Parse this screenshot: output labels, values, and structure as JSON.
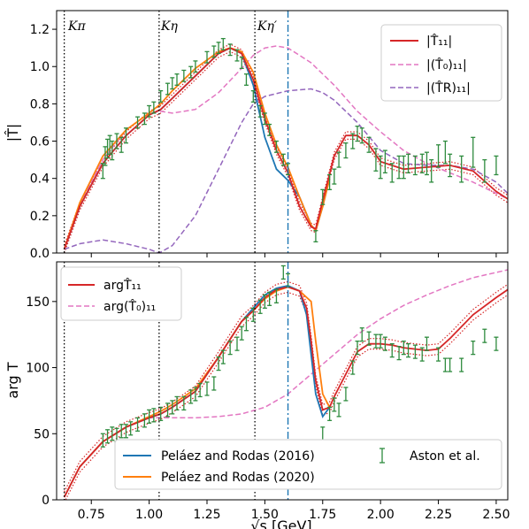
{
  "chart_data": [
    {
      "type": "line",
      "ylabel": "|T̂|",
      "xlim": [
        0.6,
        2.55
      ],
      "ylim": [
        0.0,
        1.3
      ],
      "x_ticks": [
        0.75,
        1.0,
        1.25,
        1.5,
        1.75,
        2.0,
        2.25,
        2.5
      ],
      "y_ticks": [
        0.0,
        0.2,
        0.4,
        0.6,
        0.8,
        1.0,
        1.2
      ],
      "y_tick_labels": [
        "0.0",
        "0.2",
        "0.4",
        "0.6",
        "0.8",
        "1.0",
        "1.2"
      ],
      "legend_position": "top-right",
      "legend": [
        "|T̂₁₁|",
        "|(T̂₀)₁₁|",
        "|(T̂R)₁₁|"
      ],
      "thresholds": [
        {
          "x": 0.633,
          "label": "Kπ"
        },
        {
          "x": 1.043,
          "label": "Kη"
        },
        {
          "x": 1.457,
          "label": "Kη′"
        }
      ],
      "vline_dashdot": 1.6,
      "series": [
        {
          "name": "|T̂₁₁|",
          "color": "#d62728",
          "style": "solid",
          "band": true,
          "x": [
            0.633,
            0.7,
            0.8,
            0.9,
            1.0,
            1.05,
            1.1,
            1.2,
            1.3,
            1.35,
            1.4,
            1.45,
            1.5,
            1.55,
            1.6,
            1.65,
            1.7,
            1.72,
            1.75,
            1.8,
            1.85,
            1.9,
            1.95,
            2.0,
            2.1,
            2.2,
            2.3,
            2.4,
            2.5,
            2.55
          ],
          "y": [
            0.02,
            0.25,
            0.48,
            0.63,
            0.74,
            0.77,
            0.83,
            0.95,
            1.07,
            1.1,
            1.07,
            0.93,
            0.72,
            0.55,
            0.43,
            0.25,
            0.14,
            0.13,
            0.28,
            0.52,
            0.63,
            0.63,
            0.58,
            0.49,
            0.45,
            0.46,
            0.47,
            0.44,
            0.33,
            0.29
          ]
        },
        {
          "name": "|(T̂₀)₁₁|",
          "color": "#e377c2",
          "style": "dashed",
          "x": [
            0.633,
            0.7,
            0.8,
            0.9,
            1.0,
            1.05,
            1.1,
            1.2,
            1.3,
            1.4,
            1.45,
            1.5,
            1.55,
            1.6,
            1.7,
            1.8,
            1.9,
            2.0,
            2.1,
            2.2,
            2.3,
            2.4,
            2.5,
            2.55
          ],
          "y": [
            0.02,
            0.26,
            0.5,
            0.66,
            0.75,
            0.76,
            0.75,
            0.77,
            0.86,
            0.99,
            1.06,
            1.1,
            1.11,
            1.1,
            1.02,
            0.9,
            0.76,
            0.65,
            0.55,
            0.48,
            0.43,
            0.38,
            0.32,
            0.29
          ]
        },
        {
          "name": "|(T̂R)₁₁|",
          "color": "#9467bd",
          "style": "dashed",
          "x": [
            0.633,
            0.7,
            0.8,
            0.9,
            1.0,
            1.043,
            1.1,
            1.2,
            1.3,
            1.4,
            1.45,
            1.5,
            1.6,
            1.7,
            1.75,
            1.8,
            1.9,
            2.0,
            2.1,
            2.2,
            2.3,
            2.4,
            2.5,
            2.55
          ],
          "y": [
            0.02,
            0.05,
            0.07,
            0.05,
            0.02,
            0.0,
            0.04,
            0.2,
            0.45,
            0.7,
            0.8,
            0.84,
            0.87,
            0.88,
            0.86,
            0.82,
            0.7,
            0.55,
            0.48,
            0.47,
            0.47,
            0.45,
            0.38,
            0.32
          ]
        },
        {
          "name": "Peláez and Rodas (2016)",
          "color": "#1f77b4",
          "style": "solid",
          "x": [
            0.633,
            0.7,
            0.8,
            0.9,
            1.0,
            1.05,
            1.1,
            1.2,
            1.3,
            1.35,
            1.4,
            1.45,
            1.5,
            1.55,
            1.6,
            1.65,
            1.7,
            1.72,
            1.75,
            1.78
          ],
          "y": [
            0.02,
            0.25,
            0.48,
            0.63,
            0.74,
            0.77,
            0.83,
            0.95,
            1.07,
            1.1,
            1.07,
            0.9,
            0.62,
            0.45,
            0.39,
            0.3,
            0.15,
            0.12,
            0.25,
            0.4
          ]
        },
        {
          "name": "Peláez and Rodas (2020)",
          "color": "#ff7f0e",
          "style": "solid",
          "x": [
            0.633,
            0.7,
            0.8,
            0.9,
            1.0,
            1.05,
            1.1,
            1.2,
            1.3,
            1.35,
            1.4,
            1.45,
            1.5,
            1.55,
            1.6,
            1.65,
            1.7,
            1.72,
            1.75,
            1.78
          ],
          "y": [
            0.02,
            0.27,
            0.52,
            0.66,
            0.75,
            0.8,
            0.87,
            0.99,
            1.08,
            1.1,
            1.08,
            0.97,
            0.75,
            0.58,
            0.46,
            0.3,
            0.15,
            0.12,
            0.25,
            0.4
          ]
        }
      ],
      "points": {
        "name": "Aston et al.",
        "color": "#2e8b3e",
        "x": [
          0.8,
          0.81,
          0.82,
          0.83,
          0.84,
          0.86,
          0.88,
          0.9,
          0.95,
          0.98,
          1.0,
          1.02,
          1.05,
          1.08,
          1.1,
          1.12,
          1.15,
          1.18,
          1.2,
          1.25,
          1.28,
          1.3,
          1.32,
          1.35,
          1.38,
          1.4,
          1.42,
          1.45,
          1.48,
          1.5,
          1.52,
          1.55,
          1.58,
          1.6,
          1.72,
          1.75,
          1.78,
          1.8,
          1.82,
          1.85,
          1.88,
          1.9,
          1.92,
          1.95,
          1.98,
          2.0,
          2.02,
          2.05,
          2.08,
          2.1,
          2.12,
          2.15,
          2.18,
          2.2,
          2.22,
          2.25,
          2.28,
          2.3,
          2.35,
          2.4,
          2.45,
          2.5
        ],
        "y": [
          0.44,
          0.52,
          0.56,
          0.58,
          0.55,
          0.6,
          0.58,
          0.63,
          0.7,
          0.72,
          0.76,
          0.78,
          0.84,
          0.88,
          0.91,
          0.93,
          0.95,
          0.97,
          1.0,
          1.05,
          1.08,
          1.1,
          1.12,
          1.09,
          1.06,
          1.02,
          0.93,
          0.84,
          0.76,
          0.72,
          0.66,
          0.57,
          0.5,
          0.45,
          0.09,
          0.3,
          0.38,
          0.41,
          0.5,
          0.55,
          0.6,
          0.64,
          0.63,
          0.58,
          0.5,
          0.46,
          0.49,
          0.43,
          0.46,
          0.46,
          0.48,
          0.47,
          0.48,
          0.48,
          0.44,
          0.52,
          0.54,
          0.47,
          0.45,
          0.54,
          0.44,
          0.47
        ],
        "err": [
          0.04,
          0.05,
          0.05,
          0.05,
          0.05,
          0.04,
          0.04,
          0.04,
          0.03,
          0.03,
          0.03,
          0.03,
          0.03,
          0.03,
          0.03,
          0.03,
          0.03,
          0.03,
          0.03,
          0.03,
          0.03,
          0.03,
          0.03,
          0.03,
          0.03,
          0.03,
          0.03,
          0.03,
          0.03,
          0.03,
          0.03,
          0.03,
          0.03,
          0.03,
          0.03,
          0.04,
          0.04,
          0.04,
          0.04,
          0.04,
          0.04,
          0.04,
          0.04,
          0.04,
          0.06,
          0.06,
          0.06,
          0.05,
          0.06,
          0.06,
          0.05,
          0.05,
          0.05,
          0.06,
          0.06,
          0.06,
          0.06,
          0.06,
          0.07,
          0.08,
          0.06,
          0.05
        ]
      }
    },
    {
      "type": "line",
      "ylabel": "arg T",
      "xlabel": "√s [GeV]",
      "xlim": [
        0.6,
        2.55
      ],
      "ylim": [
        0,
        180
      ],
      "x_ticks": [
        0.75,
        1.0,
        1.25,
        1.5,
        1.75,
        2.0,
        2.25,
        2.5
      ],
      "x_tick_labels": [
        "0.75",
        "1.00",
        "1.25",
        "1.50",
        "1.75",
        "2.00",
        "2.25",
        "2.50"
      ],
      "y_ticks": [
        0,
        50,
        100,
        150
      ],
      "y_tick_labels": [
        "0",
        "50",
        "100",
        "150"
      ],
      "thresholds": [
        {
          "x": 0.633
        },
        {
          "x": 1.043
        },
        {
          "x": 1.457
        }
      ],
      "vline_dashdot": 1.6,
      "legend_upper": [
        "argT̂₁₁",
        "arg(T̂₀)₁₁"
      ],
      "legend_lower": [
        "Peláez and Rodas (2016)",
        "Peláez and Rodas (2020)",
        "Aston et al."
      ],
      "series": [
        {
          "name": "argT̂₁₁",
          "color": "#d62728",
          "style": "solid",
          "band": true,
          "x": [
            0.633,
            0.7,
            0.8,
            0.9,
            1.0,
            1.05,
            1.1,
            1.2,
            1.3,
            1.4,
            1.45,
            1.5,
            1.55,
            1.6,
            1.65,
            1.68,
            1.7,
            1.72,
            1.75,
            1.78,
            1.8,
            1.85,
            1.9,
            1.95,
            2.0,
            2.05,
            2.1,
            2.2,
            2.25,
            2.3,
            2.4,
            2.5,
            2.55
          ],
          "y": [
            2,
            25,
            44,
            55,
            62,
            65,
            70,
            82,
            108,
            135,
            143,
            153,
            159,
            161,
            158,
            145,
            120,
            90,
            68,
            70,
            78,
            95,
            112,
            118,
            118,
            117,
            115,
            113,
            114,
            122,
            140,
            153,
            159
          ]
        },
        {
          "name": "arg(T̂₀)₁₁",
          "color": "#e377c2",
          "style": "dashed",
          "x": [
            0.633,
            0.7,
            0.8,
            0.9,
            1.0,
            1.1,
            1.2,
            1.3,
            1.4,
            1.5,
            1.6,
            1.7,
            1.8,
            1.9,
            2.0,
            2.1,
            2.2,
            2.3,
            2.4,
            2.5,
            2.55
          ],
          "y": [
            2,
            25,
            44,
            55,
            62,
            62,
            62,
            63,
            65,
            70,
            80,
            95,
            110,
            125,
            137,
            147,
            155,
            162,
            168,
            172,
            174
          ]
        },
        {
          "name": "Peláez and Rodas (2016)",
          "color": "#1f77b4",
          "style": "solid",
          "x": [
            0.633,
            0.7,
            0.8,
            0.9,
            1.0,
            1.05,
            1.1,
            1.2,
            1.3,
            1.4,
            1.45,
            1.5,
            1.55,
            1.6,
            1.65,
            1.68,
            1.7,
            1.72,
            1.75,
            1.78
          ],
          "y": [
            2,
            25,
            44,
            55,
            62,
            65,
            70,
            82,
            108,
            135,
            145,
            155,
            160,
            162,
            158,
            140,
            110,
            80,
            63,
            70
          ]
        },
        {
          "name": "Peláez and Rodas (2020)",
          "color": "#ff7f0e",
          "style": "solid",
          "x": [
            0.633,
            0.7,
            0.8,
            0.9,
            1.0,
            1.05,
            1.1,
            1.2,
            1.3,
            1.4,
            1.45,
            1.5,
            1.55,
            1.6,
            1.65,
            1.7,
            1.72,
            1.75,
            1.78
          ],
          "y": [
            2,
            25,
            44,
            55,
            63,
            67,
            72,
            84,
            108,
            135,
            143,
            152,
            158,
            161,
            158,
            150,
            120,
            80,
            70
          ]
        }
      ],
      "points": {
        "name": "Aston et al.",
        "color": "#2e8b3e",
        "x": [
          0.8,
          0.82,
          0.84,
          0.86,
          0.88,
          0.9,
          0.92,
          0.95,
          0.98,
          1.0,
          1.02,
          1.05,
          1.08,
          1.1,
          1.12,
          1.15,
          1.18,
          1.2,
          1.22,
          1.25,
          1.28,
          1.3,
          1.32,
          1.35,
          1.38,
          1.4,
          1.42,
          1.45,
          1.48,
          1.5,
          1.52,
          1.55,
          1.58,
          1.6,
          1.75,
          1.78,
          1.8,
          1.82,
          1.85,
          1.88,
          1.9,
          1.92,
          1.95,
          1.98,
          2.0,
          2.02,
          2.05,
          2.08,
          2.1,
          2.12,
          2.15,
          2.18,
          2.2,
          2.25,
          2.28,
          2.3,
          2.35,
          2.4,
          2.45,
          2.5
        ],
        "y": [
          45,
          48,
          50,
          49,
          52,
          52,
          54,
          57,
          60,
          63,
          64,
          65,
          68,
          70,
          73,
          73,
          78,
          80,
          83,
          84,
          88,
          103,
          108,
          115,
          118,
          126,
          133,
          140,
          146,
          150,
          152,
          154,
          172,
          166,
          50,
          65,
          72,
          68,
          80,
          100,
          115,
          125,
          122,
          120,
          120,
          118,
          113,
          111,
          115,
          113,
          112,
          110,
          118,
          110,
          102,
          102,
          102,
          115,
          124,
          118
        ]
      }
    }
  ]
}
